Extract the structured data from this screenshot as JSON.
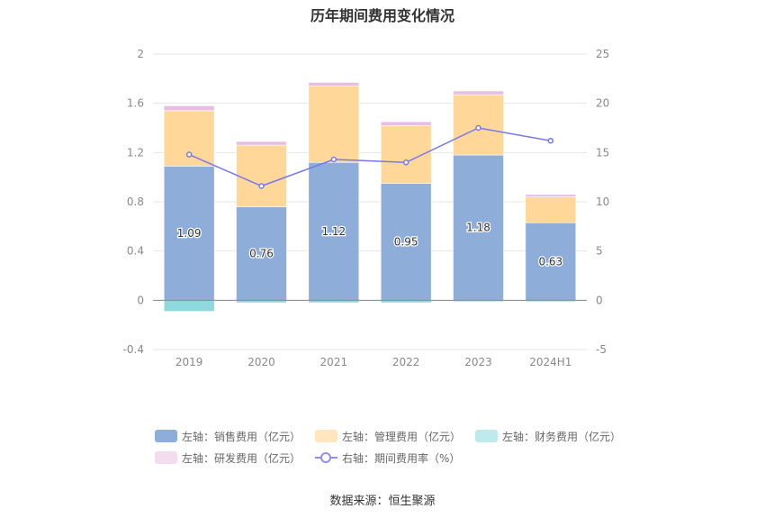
{
  "chart_data": {
    "type": "bar",
    "title": "历年期间费用变化情况",
    "categories": [
      "2019",
      "2020",
      "2021",
      "2022",
      "2023",
      "2024H1"
    ],
    "stacked": true,
    "series": [
      {
        "name": "左轴：销售费用（亿元）",
        "axis": "left",
        "type": "bar",
        "color": "#8eadd9",
        "values": [
          1.09,
          0.76,
          1.12,
          0.95,
          1.18,
          0.63
        ],
        "show_labels": true
      },
      {
        "name": "左轴：管理费用（亿元）",
        "axis": "left",
        "type": "bar",
        "color": "#ffd899",
        "values": [
          0.45,
          0.5,
          0.62,
          0.47,
          0.49,
          0.21
        ]
      },
      {
        "name": "左轴：财务费用（亿元）",
        "axis": "left",
        "type": "bar",
        "color": "#8dd9dc",
        "values": [
          -0.09,
          -0.02,
          -0.02,
          -0.02,
          -0.01,
          -0.005
        ]
      },
      {
        "name": "左轴：研发费用（亿元）",
        "axis": "left",
        "type": "bar",
        "color": "#e9bde1",
        "values": [
          0.04,
          0.03,
          0.03,
          0.03,
          0.03,
          0.02
        ]
      },
      {
        "name": "右轴：期间费用率（%）",
        "axis": "right",
        "type": "line",
        "color": "#7777ee",
        "values": [
          14.8,
          11.6,
          14.3,
          14.0,
          17.5,
          16.2
        ]
      }
    ],
    "left_axis": {
      "min": -0.4,
      "max": 2,
      "ticks": [
        "-0.4",
        "0",
        "0.4",
        "0.8",
        "1.2",
        "1.6",
        "2"
      ]
    },
    "right_axis": {
      "min": -5,
      "max": 25,
      "ticks": [
        "-5",
        "0",
        "5",
        "10",
        "15",
        "20",
        "25"
      ]
    },
    "grid": true,
    "legend_position": "bottom"
  },
  "legend": {
    "items": [
      {
        "label": "左轴：销售费用（亿元）",
        "color": "#8eadd9",
        "kind": "bar"
      },
      {
        "label": "左轴：管理费用（亿元）",
        "color": "#ffe6bf",
        "kind": "bar"
      },
      {
        "label": "左轴：财务费用（亿元）",
        "color": "#bfeaeb",
        "kind": "bar"
      },
      {
        "label": "左轴：研发费用（亿元）",
        "color": "#f4dcef",
        "kind": "bar"
      },
      {
        "label": "右轴：期间费用率（%）",
        "color": "#8f8ff2",
        "kind": "line"
      }
    ]
  },
  "source": "数据来源：恒生聚源"
}
